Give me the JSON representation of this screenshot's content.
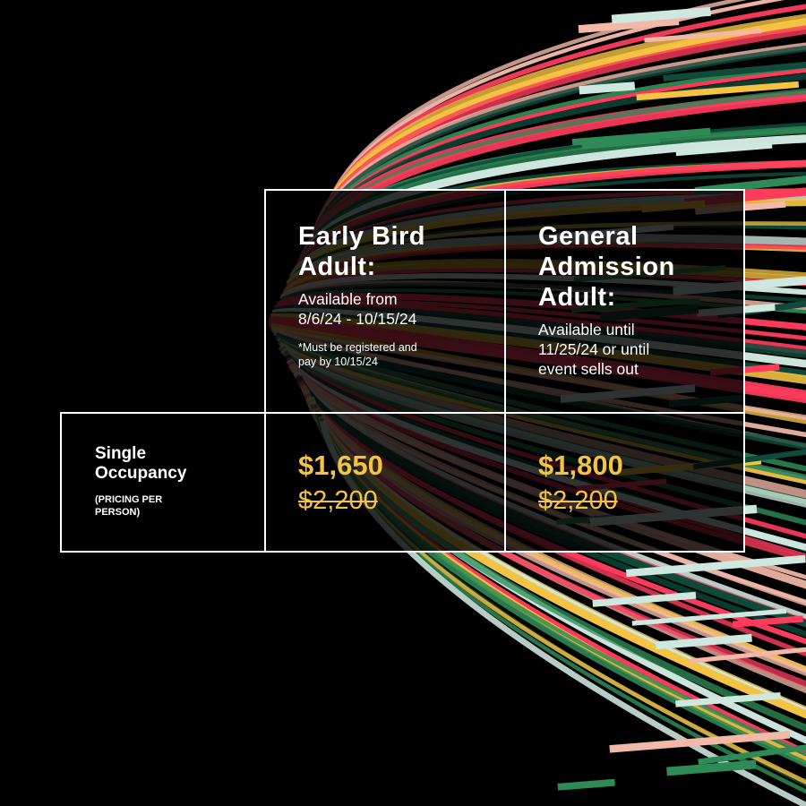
{
  "colors": {
    "background": "#000000",
    "accent_price": "#f5c342",
    "table_border": "#ffffff",
    "stripe_palette": [
      "#f5c342",
      "#2e8b57",
      "#ff3b5c",
      "#f2b8a8",
      "#cfe8df",
      "#0f4a3a"
    ]
  },
  "table": {
    "early_bird": {
      "title": "Early Bird\nAdult:",
      "availability": "Available from\n8/6/24 - 10/15/24",
      "note": "*Must be registered and\n  pay by 10/15/24"
    },
    "general_admission": {
      "title": "General\nAdmission\nAdult:",
      "availability": "Available until\n11/25/24 or until\nevent sells out"
    },
    "row": {
      "title": "Single\nOccupancy",
      "subtitle": "(PRICING PER\nPERSON)"
    },
    "prices": {
      "early_bird": {
        "price": "$1,650",
        "original": "$2,200"
      },
      "general_admission": {
        "price": "$1,800",
        "original": "$2,200"
      }
    }
  }
}
